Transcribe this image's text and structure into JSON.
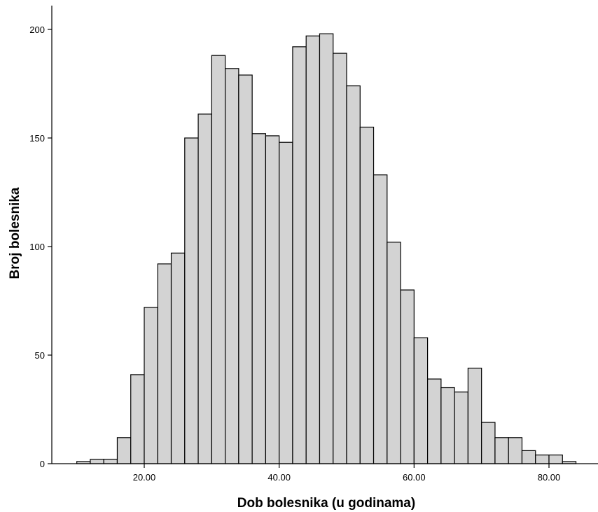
{
  "chart_data": {
    "type": "bar",
    "subtype": "histogram",
    "title": "",
    "xlabel": "Dob bolesnika (u godinama)",
    "ylabel": "Broj bolesnika",
    "xlim": [
      6.0,
      86.2
    ],
    "ylim": [
      0,
      210
    ],
    "bin_width": 2,
    "bar_fill": "#d3d3d3",
    "bar_stroke": "#000000",
    "grid": false,
    "legend": "none",
    "x_ticks": [
      20,
      40,
      60,
      80
    ],
    "x_tick_labels": [
      "20.00",
      "40.00",
      "60.00",
      "80.00"
    ],
    "y_ticks": [
      0,
      50,
      100,
      150,
      200
    ],
    "y_tick_labels": [
      "0",
      "50",
      "100",
      "150",
      "200"
    ],
    "bins": [
      {
        "start": 10,
        "count": 1
      },
      {
        "start": 12,
        "count": 2
      },
      {
        "start": 14,
        "count": 2
      },
      {
        "start": 16,
        "count": 12
      },
      {
        "start": 18,
        "count": 41
      },
      {
        "start": 20,
        "count": 72
      },
      {
        "start": 22,
        "count": 92
      },
      {
        "start": 24,
        "count": 97
      },
      {
        "start": 26,
        "count": 150
      },
      {
        "start": 28,
        "count": 161
      },
      {
        "start": 30,
        "count": 188
      },
      {
        "start": 32,
        "count": 182
      },
      {
        "start": 34,
        "count": 179
      },
      {
        "start": 36,
        "count": 152
      },
      {
        "start": 38,
        "count": 151
      },
      {
        "start": 40,
        "count": 148
      },
      {
        "start": 42,
        "count": 192
      },
      {
        "start": 44,
        "count": 197
      },
      {
        "start": 46,
        "count": 198
      },
      {
        "start": 48,
        "count": 189
      },
      {
        "start": 50,
        "count": 174
      },
      {
        "start": 52,
        "count": 155
      },
      {
        "start": 54,
        "count": 133
      },
      {
        "start": 56,
        "count": 102
      },
      {
        "start": 58,
        "count": 80
      },
      {
        "start": 60,
        "count": 58
      },
      {
        "start": 62,
        "count": 39
      },
      {
        "start": 64,
        "count": 35
      },
      {
        "start": 66,
        "count": 33
      },
      {
        "start": 68,
        "count": 44
      },
      {
        "start": 70,
        "count": 19
      },
      {
        "start": 72,
        "count": 12
      },
      {
        "start": 74,
        "count": 12
      },
      {
        "start": 76,
        "count": 6
      },
      {
        "start": 78,
        "count": 4
      },
      {
        "start": 80,
        "count": 4
      },
      {
        "start": 82,
        "count": 1
      }
    ]
  }
}
